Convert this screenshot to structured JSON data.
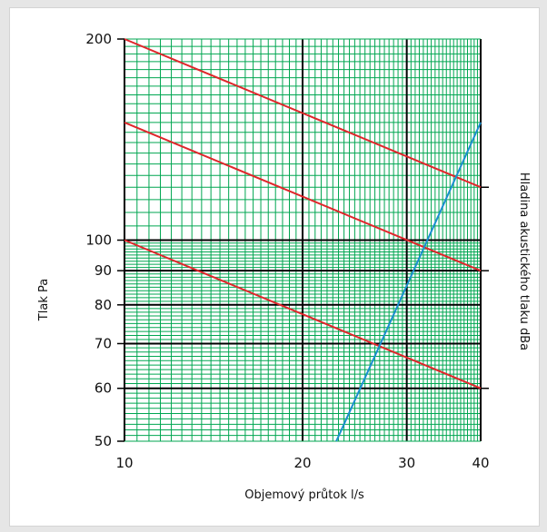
{
  "chart_data": {
    "type": "line",
    "xlabel": "Objemový průtok l/s",
    "ylabel": "Tlak Pa",
    "y2label": "Hladina akustického tlaku dBa",
    "x_scale": "log",
    "y_scale": "log",
    "xlim": [
      10,
      40
    ],
    "ylim": [
      50,
      200
    ],
    "x_ticks": [
      "10",
      "20",
      "30",
      "40"
    ],
    "y_ticks": [
      "50",
      "60",
      "70",
      "80",
      "90",
      "100",
      "200"
    ],
    "grid": true,
    "colors": {
      "grid_minor": "#00a651",
      "grid_major": "#000000",
      "noise_lines": "#e0262b",
      "pressure_curve": "#1a8fcf"
    },
    "series": [
      {
        "color": "#e0262b",
        "points": [
          [
            10,
            200
          ],
          [
            40,
            120
          ]
        ]
      },
      {
        "color": "#e0262b",
        "points": [
          [
            10,
            150
          ],
          [
            40,
            90
          ]
        ]
      },
      {
        "color": "#e0262b",
        "points": [
          [
            10,
            100
          ],
          [
            40,
            60
          ]
        ]
      },
      {
        "color": "#1a8fcf",
        "points": [
          [
            22.8,
            50
          ],
          [
            40,
            150
          ]
        ]
      }
    ]
  }
}
